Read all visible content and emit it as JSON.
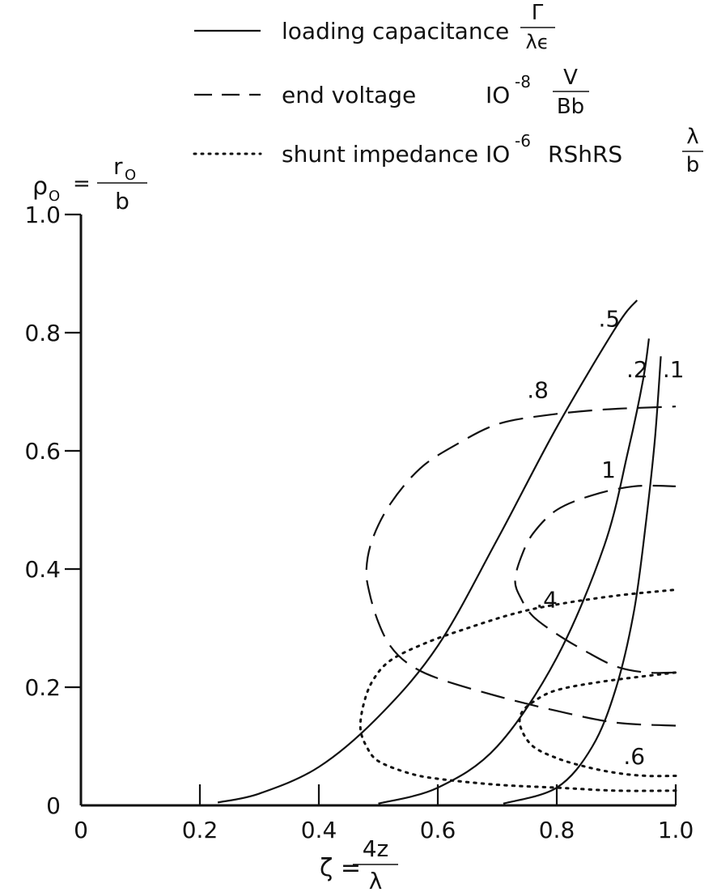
{
  "chart_data": {
    "type": "line",
    "title": "",
    "xlim": [
      0,
      1.0
    ],
    "ylim": [
      0,
      1.0
    ],
    "grid": false,
    "legend_placement": "top",
    "x_ticks": [
      "0",
      "0.2",
      "0.4",
      "0.6",
      "0.8",
      "1.0"
    ],
    "y_ticks": [
      "0",
      "0.2",
      "0.4",
      "0.6",
      "0.8",
      "1.0"
    ],
    "xlabel": {
      "lhs": "ζ =",
      "num": "4z",
      "den": "λ"
    },
    "ylabel": {
      "lhs": "ρ",
      "sub": "O",
      "eq": "=",
      "num": "r",
      "num_sub": "O",
      "den": "b"
    },
    "legend": [
      {
        "style": "solid",
        "label": "loading capacitance",
        "unit_num": "Γ",
        "unit_den": "λϵ"
      },
      {
        "style": "dashed",
        "label": "end voltage",
        "unit_prefix": "IO",
        "unit_exp": "-8",
        "unit_num": "V",
        "unit_den": "Bb"
      },
      {
        "style": "dotted",
        "label": "shunt impedance",
        "unit_prefix": "IO",
        "unit_exp": "-6",
        "unit_mid": "RShRS",
        "unit_num": "λ",
        "unit_den": "b"
      }
    ],
    "series": [
      {
        "style": "solid",
        "label": ".5",
        "points": [
          [
            0.23,
            0.005
          ],
          [
            0.3,
            0.02
          ],
          [
            0.4,
            0.065
          ],
          [
            0.5,
            0.15
          ],
          [
            0.6,
            0.27
          ],
          [
            0.7,
            0.45
          ],
          [
            0.8,
            0.64
          ],
          [
            0.9,
            0.81
          ],
          [
            0.935,
            0.855
          ]
        ]
      },
      {
        "style": "solid",
        "label": ".2",
        "points": [
          [
            0.5,
            0.003
          ],
          [
            0.6,
            0.03
          ],
          [
            0.7,
            0.1
          ],
          [
            0.8,
            0.25
          ],
          [
            0.88,
            0.44
          ],
          [
            0.92,
            0.6
          ],
          [
            0.945,
            0.72
          ],
          [
            0.955,
            0.79
          ]
        ]
      },
      {
        "style": "solid",
        "label": ".1",
        "points": [
          [
            0.71,
            0.003
          ],
          [
            0.8,
            0.03
          ],
          [
            0.86,
            0.1
          ],
          [
            0.9,
            0.2
          ],
          [
            0.93,
            0.33
          ],
          [
            0.95,
            0.48
          ],
          [
            0.965,
            0.62
          ],
          [
            0.975,
            0.76
          ]
        ]
      },
      {
        "style": "dashed",
        "label": ".8",
        "points": [
          [
            1.0,
            0.135
          ],
          [
            0.9,
            0.14
          ],
          [
            0.8,
            0.16
          ],
          [
            0.7,
            0.185
          ],
          [
            0.6,
            0.215
          ],
          [
            0.55,
            0.24
          ],
          [
            0.52,
            0.27
          ],
          [
            0.5,
            0.31
          ],
          [
            0.485,
            0.36
          ],
          [
            0.48,
            0.4
          ],
          [
            0.49,
            0.45
          ],
          [
            0.52,
            0.51
          ],
          [
            0.57,
            0.57
          ],
          [
            0.63,
            0.61
          ],
          [
            0.7,
            0.645
          ],
          [
            0.78,
            0.66
          ],
          [
            0.88,
            0.67
          ],
          [
            1.0,
            0.675
          ]
        ]
      },
      {
        "style": "dashed",
        "label": "1",
        "points": [
          [
            1.0,
            0.225
          ],
          [
            0.95,
            0.225
          ],
          [
            0.9,
            0.235
          ],
          [
            0.85,
            0.26
          ],
          [
            0.8,
            0.29
          ],
          [
            0.76,
            0.32
          ],
          [
            0.74,
            0.35
          ],
          [
            0.73,
            0.38
          ],
          [
            0.74,
            0.42
          ],
          [
            0.76,
            0.46
          ],
          [
            0.8,
            0.5
          ],
          [
            0.86,
            0.525
          ],
          [
            0.93,
            0.54
          ],
          [
            1.0,
            0.54
          ]
        ]
      },
      {
        "style": "dotted",
        "label": ".4",
        "points": [
          [
            1.0,
            0.025
          ],
          [
            0.9,
            0.025
          ],
          [
            0.8,
            0.03
          ],
          [
            0.7,
            0.035
          ],
          [
            0.6,
            0.045
          ],
          [
            0.55,
            0.055
          ],
          [
            0.5,
            0.075
          ],
          [
            0.48,
            0.1
          ],
          [
            0.47,
            0.13
          ],
          [
            0.475,
            0.17
          ],
          [
            0.49,
            0.21
          ],
          [
            0.52,
            0.245
          ],
          [
            0.58,
            0.275
          ],
          [
            0.65,
            0.3
          ],
          [
            0.73,
            0.325
          ],
          [
            0.8,
            0.34
          ],
          [
            0.9,
            0.355
          ],
          [
            1.0,
            0.365
          ]
        ]
      },
      {
        "style": "dotted",
        "label": ".6",
        "points": [
          [
            1.0,
            0.05
          ],
          [
            0.95,
            0.05
          ],
          [
            0.9,
            0.055
          ],
          [
            0.85,
            0.065
          ],
          [
            0.8,
            0.08
          ],
          [
            0.76,
            0.1
          ],
          [
            0.74,
            0.13
          ],
          [
            0.74,
            0.155
          ],
          [
            0.76,
            0.175
          ],
          [
            0.8,
            0.195
          ],
          [
            0.88,
            0.21
          ],
          [
            1.0,
            0.225
          ]
        ]
      }
    ],
    "curve_labels": [
      {
        "text": ".5",
        "at": [
          0.87,
          0.81
        ]
      },
      {
        "text": ".2",
        "at": [
          0.917,
          0.725
        ]
      },
      {
        "text": ".1",
        "at": [
          0.978,
          0.725
        ]
      },
      {
        "text": ".8",
        "at": [
          0.75,
          0.69
        ]
      },
      {
        "text": "1",
        "at": [
          0.875,
          0.555
        ]
      },
      {
        "text": ".4",
        "at": [
          0.765,
          0.335
        ]
      },
      {
        "text": ".6",
        "at": [
          0.912,
          0.07
        ]
      }
    ]
  }
}
